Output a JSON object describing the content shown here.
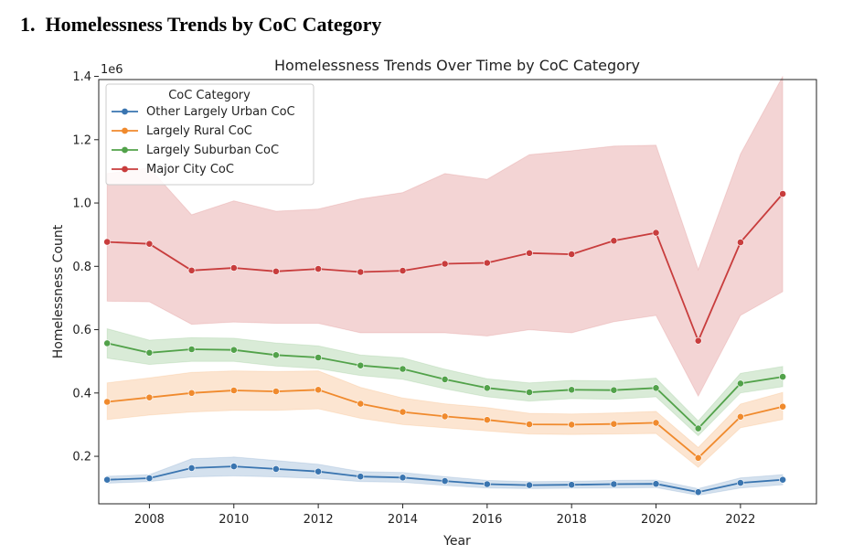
{
  "heading": {
    "number": "1.",
    "text": "Homelessness Trends by CoC Category"
  },
  "chart_data": {
    "type": "line",
    "title": "Homelessness Trends Over Time by CoC Category",
    "xlabel": "Year",
    "ylabel": "Homelessness Count",
    "y_scale_label": "1e6",
    "xlim": [
      2006.8,
      2023.8
    ],
    "ylim": [
      0.05,
      1.39
    ],
    "x_ticks": [
      2008,
      2010,
      2012,
      2014,
      2016,
      2018,
      2020,
      2022
    ],
    "x_tick_labels": [
      "2008",
      "2010",
      "2012",
      "2014",
      "2016",
      "2018",
      "2020",
      "2022"
    ],
    "y_ticks": [
      0.2,
      0.4,
      0.6,
      0.8,
      1.0,
      1.2,
      1.4
    ],
    "y_tick_labels": [
      "0.2",
      "0.4",
      "0.6",
      "0.8",
      "1.0",
      "1.2",
      "1.4"
    ],
    "grid": false,
    "legend": {
      "title": "CoC Category",
      "placement": "top-left"
    },
    "x": [
      2007,
      2008,
      2009,
      2010,
      2011,
      2012,
      2013,
      2014,
      2015,
      2016,
      2017,
      2018,
      2019,
      2020,
      2021,
      2022,
      2023
    ],
    "series": [
      {
        "name": "Other Largely Urban CoC",
        "color": "#3a75b0",
        "values": [
          0.126,
          0.131,
          0.163,
          0.168,
          0.16,
          0.152,
          0.136,
          0.133,
          0.122,
          0.112,
          0.109,
          0.11,
          0.112,
          0.113,
          0.087,
          0.116,
          0.126
        ],
        "ci_low": [
          0.115,
          0.12,
          0.135,
          0.138,
          0.135,
          0.13,
          0.12,
          0.118,
          0.108,
          0.1,
          0.098,
          0.099,
          0.1,
          0.101,
          0.077,
          0.1,
          0.11
        ],
        "ci_high": [
          0.137,
          0.142,
          0.192,
          0.198,
          0.187,
          0.175,
          0.152,
          0.149,
          0.136,
          0.124,
          0.12,
          0.121,
          0.124,
          0.125,
          0.098,
          0.132,
          0.142
        ]
      },
      {
        "name": "Largely Rural CoC",
        "color": "#f08a2d",
        "values": [
          0.372,
          0.386,
          0.4,
          0.408,
          0.405,
          0.41,
          0.366,
          0.34,
          0.326,
          0.315,
          0.301,
          0.3,
          0.302,
          0.306,
          0.195,
          0.325,
          0.357
        ],
        "ci_low": [
          0.316,
          0.33,
          0.34,
          0.345,
          0.345,
          0.35,
          0.32,
          0.3,
          0.29,
          0.28,
          0.27,
          0.269,
          0.27,
          0.272,
          0.165,
          0.29,
          0.316
        ],
        "ci_high": [
          0.432,
          0.448,
          0.465,
          0.47,
          0.468,
          0.47,
          0.418,
          0.384,
          0.366,
          0.354,
          0.336,
          0.334,
          0.337,
          0.342,
          0.228,
          0.365,
          0.402
        ]
      },
      {
        "name": "Largely Suburban CoC",
        "color": "#52a24a",
        "values": [
          0.557,
          0.527,
          0.538,
          0.536,
          0.52,
          0.512,
          0.487,
          0.476,
          0.443,
          0.416,
          0.402,
          0.41,
          0.409,
          0.416,
          0.288,
          0.43,
          0.451
        ],
        "ci_low": [
          0.51,
          0.49,
          0.5,
          0.5,
          0.485,
          0.477,
          0.455,
          0.443,
          0.413,
          0.388,
          0.374,
          0.382,
          0.38,
          0.388,
          0.265,
          0.4,
          0.42
        ],
        "ci_high": [
          0.603,
          0.567,
          0.575,
          0.573,
          0.558,
          0.549,
          0.52,
          0.511,
          0.475,
          0.445,
          0.432,
          0.44,
          0.438,
          0.447,
          0.312,
          0.462,
          0.484
        ]
      },
      {
        "name": "Major City CoC",
        "color": "#c83d3d",
        "values": [
          0.877,
          0.871,
          0.787,
          0.795,
          0.784,
          0.792,
          0.782,
          0.786,
          0.808,
          0.811,
          0.842,
          0.838,
          0.881,
          0.906,
          0.565,
          0.876,
          1.029
        ],
        "ci_low": [
          0.69,
          0.688,
          0.617,
          0.624,
          0.62,
          0.62,
          0.59,
          0.59,
          0.59,
          0.58,
          0.6,
          0.59,
          0.625,
          0.645,
          0.39,
          0.645,
          0.72
        ],
        "ci_high": [
          1.093,
          1.111,
          0.963,
          1.007,
          0.974,
          0.981,
          1.013,
          1.033,
          1.093,
          1.075,
          1.153,
          1.165,
          1.18,
          1.183,
          0.79,
          1.155,
          1.4
        ]
      }
    ]
  }
}
